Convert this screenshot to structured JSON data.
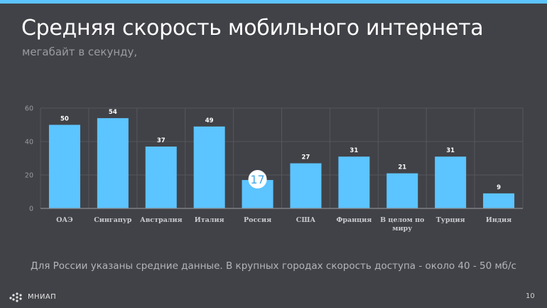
{
  "slide": {
    "title": "Средняя скорость мобильного интернета",
    "subtitle": "мегабайт в секунду,",
    "footnote": "Для России указаны средние данные. В крупных городах скорость доступа - около 40 - 50 мб/с",
    "logo_text": "МНИАП",
    "page_number": "10"
  },
  "colors": {
    "background": "#414247",
    "bar": "#5cc4ff",
    "highlight_fill": "#ffffff",
    "highlight_text": "#43a9e8"
  },
  "chart_data": {
    "type": "bar",
    "title": "",
    "xlabel": "",
    "ylabel": "",
    "categories": [
      "ОАЭ",
      "Сингапур",
      "Австралия",
      "Италия",
      "Россия",
      "США",
      "Франция",
      "В целом по миру",
      "Турция",
      "Индия"
    ],
    "values": [
      50,
      54,
      37,
      49,
      17,
      27,
      31,
      21,
      31,
      9
    ],
    "ylim": [
      0,
      60
    ],
    "yticks": [
      0,
      20,
      40,
      60
    ],
    "grid": true,
    "highlight_category": "Россия"
  }
}
